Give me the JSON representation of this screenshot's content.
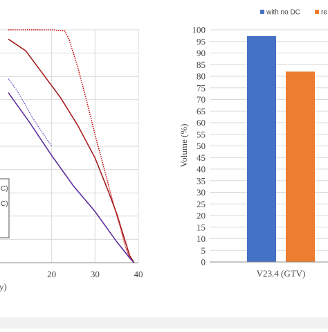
{
  "chart_data": [
    {
      "type": "line",
      "title": "",
      "xlabel_fragment": "y)",
      "ylabel": "",
      "xlim": [
        10,
        40
      ],
      "ylim": [
        0,
        100
      ],
      "x_ticks": [
        "20",
        "30",
        "40"
      ],
      "grid": true,
      "legend_partial_labels": [
        "C)",
        "C)"
      ],
      "series": [
        {
          "color": "#c00000",
          "dash": "dotted",
          "points": [
            [
              10,
              100
            ],
            [
              20,
              100
            ],
            [
              23,
              99.5
            ],
            [
              24,
              96
            ],
            [
              26,
              84
            ],
            [
              28,
              70
            ],
            [
              30,
              55
            ],
            [
              32,
              41
            ],
            [
              34,
              27
            ],
            [
              36,
              14
            ],
            [
              37,
              7
            ],
            [
              38,
              2
            ],
            [
              39,
              0
            ]
          ]
        },
        {
          "color": "#a51c1c",
          "dash": "solid",
          "points": [
            [
              10,
              96
            ],
            [
              14,
              91
            ],
            [
              18,
              81
            ],
            [
              22,
              71
            ],
            [
              26,
              59
            ],
            [
              30,
              45
            ],
            [
              33,
              31
            ],
            [
              35,
              21
            ],
            [
              37,
              9
            ],
            [
              38,
              3
            ],
            [
              39,
              0
            ]
          ]
        },
        {
          "color": "#7b5bc6",
          "dash": "dotted",
          "points": [
            [
              10,
              79
            ],
            [
              12,
              74
            ],
            [
              16,
              61
            ],
            [
              20,
              50
            ]
          ]
        },
        {
          "color": "#5a2d9c",
          "dash": "solid",
          "points": [
            [
              10,
              73
            ],
            [
              15,
              60
            ],
            [
              20,
              46
            ],
            [
              25,
              33
            ],
            [
              30,
              22
            ],
            [
              35,
              9
            ],
            [
              38,
              2
            ],
            [
              39,
              0
            ]
          ]
        }
      ]
    },
    {
      "type": "bar",
      "categories": [
        "V23.4 (GTV)"
      ],
      "ylabel": "Volume (%)",
      "ylim": [
        0,
        100
      ],
      "y_ticks": [
        "0",
        "5",
        "10",
        "15",
        "20",
        "25",
        "30",
        "35",
        "40",
        "45",
        "50",
        "55",
        "60",
        "65",
        "70",
        "75",
        "80",
        "85",
        "90",
        "95",
        "100"
      ],
      "legend_position": "top-right",
      "series": [
        {
          "name": "with no DC",
          "color": "#4472c4",
          "values": [
            97.3
          ]
        },
        {
          "name": "re",
          "color": "#ed7d31",
          "values": [
            82
          ]
        }
      ]
    }
  ]
}
